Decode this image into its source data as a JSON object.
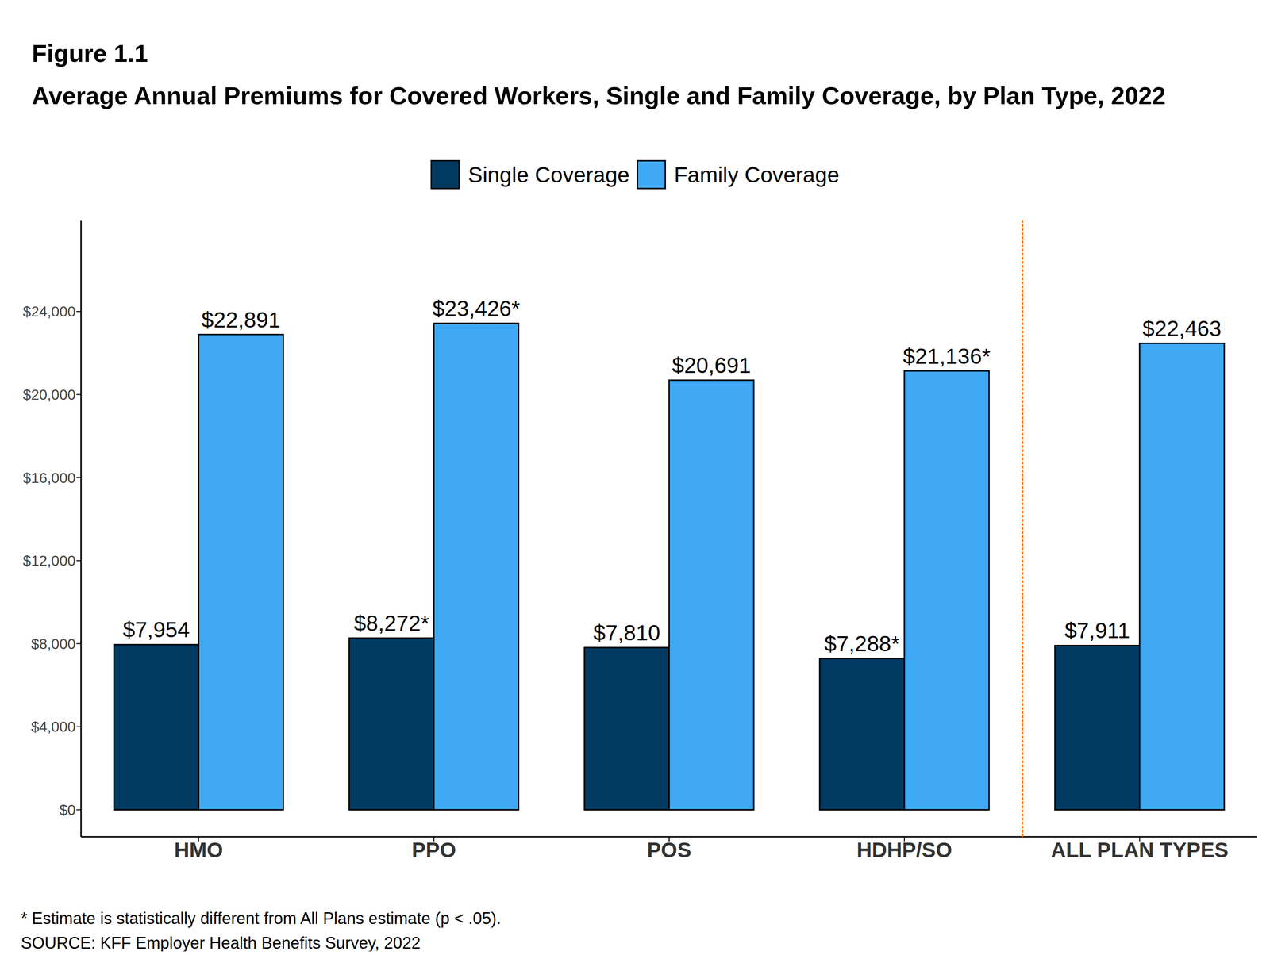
{
  "chart_data": {
    "type": "bar",
    "figure_label": "Figure 1.1",
    "title": "Average Annual Premiums for Covered Workers, Single and Family Coverage, by Plan Type, 2022",
    "categories": [
      "HMO",
      "PPO",
      "POS",
      "HDHP/SO",
      "ALL PLAN TYPES"
    ],
    "series": [
      {
        "name": "Single Coverage",
        "color": "#003a63",
        "values": [
          7954,
          8272,
          7810,
          7288,
          7911
        ],
        "value_labels": [
          "$7,954",
          "$8,272*",
          "$7,810",
          "$7,288*",
          "$7,911"
        ]
      },
      {
        "name": "Family Coverage",
        "color": "#3fa9f5",
        "values": [
          22891,
          23426,
          20691,
          21136,
          22463
        ],
        "value_labels": [
          "$22,891",
          "$23,426*",
          "$20,691",
          "$21,136*",
          "$22,463"
        ]
      }
    ],
    "ylim": [
      -1300,
      28400
    ],
    "yticks": [
      {
        "value": 0,
        "label": "$0"
      },
      {
        "value": 4000,
        "label": "$4,000"
      },
      {
        "value": 8000,
        "label": "$8,000"
      },
      {
        "value": 12000,
        "label": "$12,000"
      },
      {
        "value": 16000,
        "label": "$16,000"
      },
      {
        "value": 20000,
        "label": "$20,000"
      },
      {
        "value": 24000,
        "label": "$24,000"
      }
    ],
    "grid": false,
    "legend": "top",
    "data_labels": true,
    "notes": [
      "* Estimate is statistically different from All Plans estimate (p < .05).",
      "SOURCE: KFF Employer Health Benefits Survey, 2022"
    ]
  }
}
